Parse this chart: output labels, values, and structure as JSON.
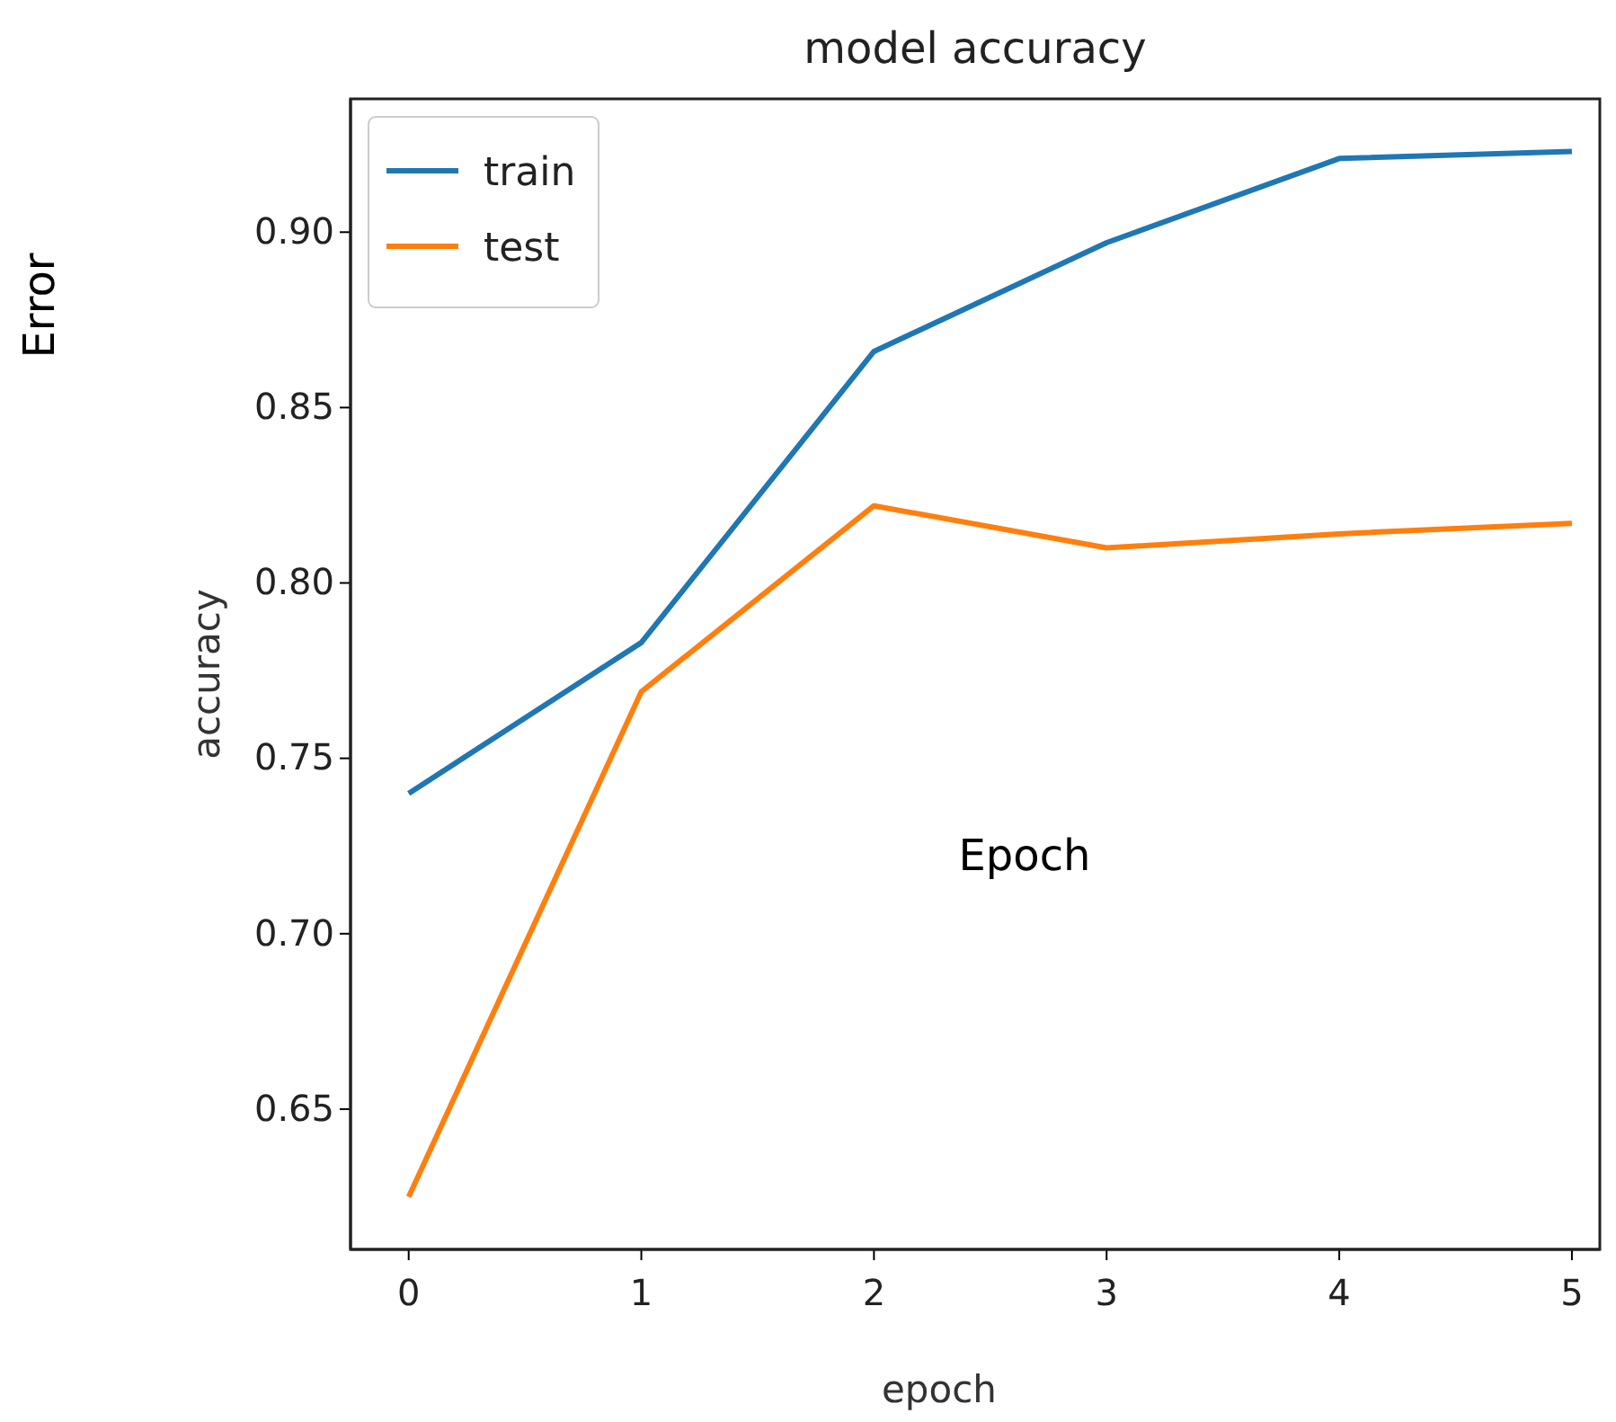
{
  "chart_data": {
    "type": "line",
    "title": "model accuracy",
    "xlabel": "epoch",
    "ylabel": "accuracy",
    "annotations": [
      "Error",
      "Epoch"
    ],
    "x": [
      0,
      1,
      2,
      3,
      4,
      5
    ],
    "series": [
      {
        "name": "train",
        "color": "#1f77b4",
        "values": [
          0.74,
          0.783,
          0.866,
          0.897,
          0.921,
          0.923
        ]
      },
      {
        "name": "test",
        "color": "#ff7f0e",
        "values": [
          0.625,
          0.769,
          0.822,
          0.81,
          0.814,
          0.817
        ]
      }
    ],
    "xlim": [
      -0.25,
      5.12
    ],
    "ylim": [
      0.61,
      0.938
    ],
    "xticks": [
      0,
      1,
      2,
      3,
      4,
      5
    ],
    "yticks": [
      {
        "value": 0.65,
        "label": "0.65"
      },
      {
        "value": 0.7,
        "label": "0.70"
      },
      {
        "value": 0.75,
        "label": "0.75"
      },
      {
        "value": 0.8,
        "label": "0.80"
      },
      {
        "value": 0.85,
        "label": "0.85"
      },
      {
        "value": 0.9,
        "label": "0.90"
      }
    ],
    "legend": "top left",
    "grid": false,
    "line_style": "solid",
    "marker": "none"
  }
}
